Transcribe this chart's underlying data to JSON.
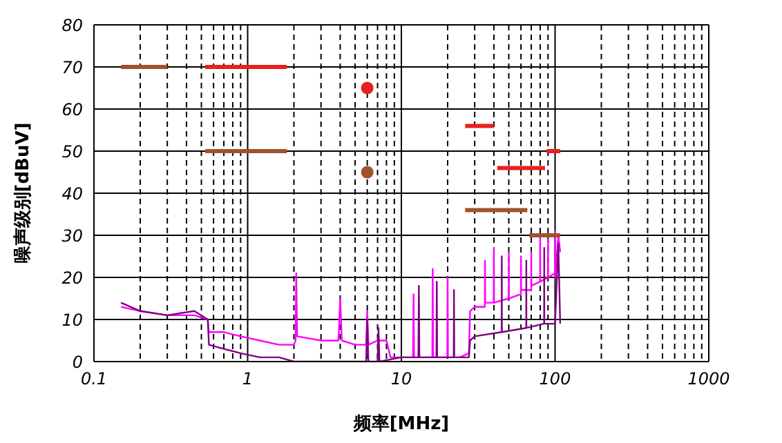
{
  "chart_data": {
    "type": "line",
    "xlabel": "频率[MHz]",
    "ylabel": "噪声级别[dBuV]",
    "log": "x",
    "grid": true,
    "marker": "none",
    "line_style": "solid",
    "xlim": [
      0.1,
      1000
    ],
    "xticks": [
      0.1,
      1,
      10,
      100,
      1000
    ],
    "ylim": [
      0,
      80
    ],
    "yticks": [
      0,
      10,
      20,
      30,
      40,
      50,
      60,
      70,
      80
    ],
    "series": [
      {
        "color": "#ff00ff",
        "x": [
          0.15,
          0.2,
          0.3,
          0.45,
          0.55,
          0.56,
          0.7,
          0.9,
          1.2,
          1.6,
          2.0,
          2.05,
          2.07,
          2.1,
          3,
          3.9,
          4.0,
          4.1,
          5,
          5.9,
          6.0,
          6.1,
          7,
          8,
          8.5,
          10,
          11.9,
          12,
          12.1,
          15,
          15.9,
          16,
          16.1,
          19.9,
          20,
          20.1,
          24,
          27.5,
          28,
          30,
          34.9,
          35,
          35.1,
          39.9,
          40,
          40.1,
          49.9,
          50,
          50.1,
          59.9,
          60,
          60.1,
          69.9,
          70,
          70.1,
          79.9,
          80,
          80.1,
          89.9,
          90,
          90.1,
          99.9,
          100,
          100.1,
          105,
          108
        ],
        "values": [
          13,
          12,
          11,
          11,
          10,
          7,
          7,
          6,
          5,
          4,
          4,
          5,
          21,
          6,
          5,
          5,
          15,
          5,
          4,
          4,
          12,
          4,
          5,
          5,
          1,
          1,
          1,
          16,
          1,
          1,
          1,
          22,
          1,
          1,
          20,
          1,
          1,
          2,
          12,
          13,
          13,
          24,
          14,
          14,
          27,
          14,
          15,
          26,
          15,
          16,
          25,
          17,
          17,
          26,
          18,
          19,
          30,
          19,
          20,
          29,
          20,
          21,
          31,
          20,
          30,
          26
        ]
      },
      {
        "color": "#800080",
        "x": [
          0.15,
          0.2,
          0.3,
          0.45,
          0.55,
          0.56,
          0.7,
          0.9,
          1.2,
          1.6,
          2.0,
          5.9,
          6.0,
          6.1,
          7.0,
          7.1,
          7.2,
          10,
          12.9,
          13,
          13.1,
          16.9,
          17,
          17.1,
          21.9,
          22,
          22.1,
          27.5,
          28,
          30,
          44.9,
          45,
          45.1,
          64.9,
          65,
          65.1,
          84.9,
          85,
          85.1,
          100,
          105,
          108
        ],
        "values": [
          14,
          12,
          11,
          12,
          10,
          4,
          3,
          2,
          1,
          1,
          0,
          0,
          10,
          0,
          0,
          8,
          0,
          1,
          1,
          18,
          1,
          1,
          19,
          1,
          1,
          17,
          1,
          1,
          5,
          6,
          7,
          25,
          7,
          8,
          24,
          8,
          9,
          27,
          9,
          9,
          28,
          9
        ]
      },
      {
        "color": "#e8201f",
        "x": [
          0.53,
          1.8,
          3,
          26,
          40,
          40.5,
          42,
          86,
          87,
          88,
          108
        ],
        "values": [
          70,
          70,
          null,
          56,
          56,
          null,
          46,
          46,
          null,
          50,
          50
        ]
      },
      {
        "color": "#a0522d",
        "x": [
          0.15,
          0.3,
          0.4,
          0.53,
          1.8,
          3,
          26,
          66,
          67,
          68,
          108
        ],
        "values": [
          70,
          70,
          null,
          50,
          50,
          null,
          36,
          36,
          null,
          30,
          30
        ]
      },
      {
        "type": "scatter",
        "marker": "circle",
        "color": "#e8201f",
        "x": [
          6
        ],
        "values": [
          65
        ]
      },
      {
        "type": "scatter",
        "marker": "circle",
        "color": "#a0522d",
        "x": [
          6
        ],
        "values": [
          45
        ]
      }
    ]
  }
}
